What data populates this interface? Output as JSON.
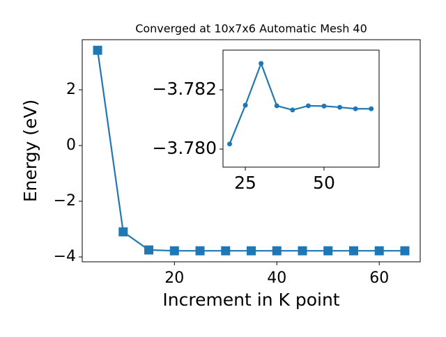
{
  "chart_data": [
    {
      "type": "line",
      "title": "Converged at 10x7x6 Automatic Mesh 40",
      "xlabel": "Increment in K point",
      "ylabel": "Energy (eV)",
      "x": [
        5,
        10,
        15,
        20,
        25,
        30,
        35,
        40,
        45,
        50,
        55,
        60,
        65
      ],
      "values": [
        3.42,
        -3.1,
        -3.75,
        -3.78,
        -3.78,
        -3.78,
        -3.78,
        -3.78,
        -3.78,
        -3.78,
        -3.78,
        -3.78,
        -3.78
      ],
      "color": "#1f77b4",
      "marker": "square",
      "xlim": [
        2,
        68
      ],
      "xticks": [
        20,
        40,
        60
      ],
      "ylim": [
        -4.175,
        3.8
      ],
      "yticks": [
        {
          "value": -4,
          "label": "−4"
        },
        {
          "value": -2,
          "label": "−2"
        },
        0,
        2
      ]
    },
    {
      "type": "line",
      "x": [
        20,
        25,
        30,
        35,
        40,
        45,
        50,
        55,
        60,
        65
      ],
      "values": [
        -3.78017,
        -3.78148,
        -3.78289,
        -3.78146,
        -3.78132,
        -3.78146,
        -3.78145,
        -3.78141,
        -3.78136,
        -3.78136
      ],
      "color": "#1f77b4",
      "marker": "circle",
      "xlim": [
        17.9,
        67.5
      ],
      "xticks": [
        25,
        50
      ],
      "ylim": [
        -3.77939,
        -3.78334
      ],
      "yticks": [
        {
          "value": -3.78,
          "label": "−3.780"
        },
        {
          "value": -3.782,
          "label": "−3.782"
        }
      ]
    }
  ]
}
